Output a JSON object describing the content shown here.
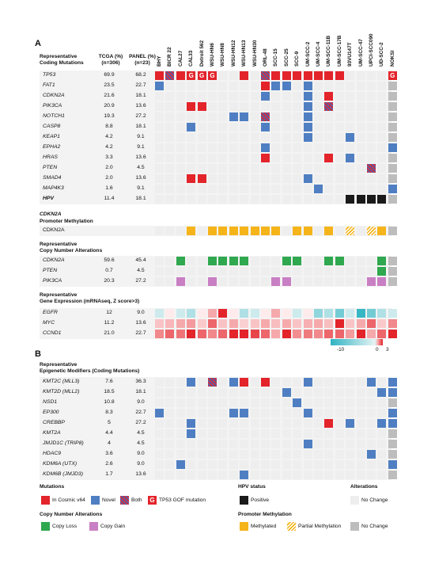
{
  "panel_a": {
    "letter": "A",
    "mutations_title": "Representative\nCoding Mutations",
    "tcga_header": "TCGA (%)\n(n=306)",
    "panel_header": "PANEL (%)\n(n=23)",
    "cell_lines": [
      "BHY",
      "BICR 22",
      "CAL27",
      "CAL33",
      "Detroit 562",
      "WSU-HN6",
      "WSU-HN8",
      "WSU-HN12",
      "WSU-HN13",
      "WSU-HN30",
      "ORL-48",
      "SCC-15",
      "SCC-25",
      "SCC-9",
      "UM-SCC-2",
      "UM-SCC-4",
      "UM-SCC-11B",
      "UM-SCC-17B",
      "93VU147T",
      "UM-SCC-47",
      "UPCI-SCC090",
      "UD-SCC-2",
      "NOKSI"
    ],
    "mutation_rows": [
      {
        "gene": "TP53",
        "tcga": "69.9",
        "panel": "68.2",
        "cells": "RHRGGGXXRXHRRRRRRRXXXXG"
      },
      {
        "gene": "FAT1",
        "tcga": "23.5",
        "panel": "22.7",
        "cells": "BXXXXXXXXXRBBXBXXXXXXXL"
      },
      {
        "gene": "CDKN2A",
        "tcga": "21.6",
        "panel": "18.1",
        "cells": "XXXXXXXXXXBXXXBXRXXXXXL"
      },
      {
        "gene": "PIK3CA",
        "tcga": "20.9",
        "panel": "13.6",
        "cells": "XXXRRXXXXXXXXXBXHXXXXXL"
      },
      {
        "gene": "NOTCH1",
        "tcga": "19.3",
        "panel": "27.2",
        "cells": "XXXXXXXBBXHXXXBXXXXXXXL"
      },
      {
        "gene": "CASP8",
        "tcga": "8.8",
        "panel": "18.1",
        "cells": "XXXBXXXXXXBXXXBXXXXXXXL"
      },
      {
        "gene": "KEAP1",
        "tcga": "4.2",
        "panel": "9.1",
        "cells": "XXXXXXXXXXXXXXBXXXBXXXL"
      },
      {
        "gene": "EPHA2",
        "tcga": "4.2",
        "panel": "9.1",
        "cells": "XXXXXXXXXXBXXXXXXXXXXXB"
      },
      {
        "gene": "HRAS",
        "tcga": "3.3",
        "panel": "13.6",
        "cells": "XXXXXXXXXXRXXXXXRXBXXXL"
      },
      {
        "gene": "PTEN",
        "tcga": "2.0",
        "panel": "4.5",
        "cells": "XXXXXXXXXXXXXXXXXXXXHXL"
      },
      {
        "gene": "SMAD4",
        "tcga": "2.0",
        "panel": "13.6",
        "cells": "XXXRRXXXXXXXXXBXXXXXXXL"
      },
      {
        "gene": "MAP4K3",
        "tcga": "1.6",
        "panel": "9.1",
        "cells": "XXXXXXXXXXXXXXXBXXXXXXB"
      },
      {
        "gene": "HPV",
        "tcga": "11.4",
        "panel": "18.1",
        "bold": true,
        "cells": "XXXXXXXXXXXXXXXXXXKKKKL"
      }
    ],
    "methylation_title_gene": "CDKN2A",
    "methylation_title": "Promoter Methylation",
    "methylation_row": {
      "gene": "CDKN2A",
      "cells": "XXXYXYYYYYYYXYYXYXPXPYL"
    },
    "cna_title": "Representative\nCopy Number Alterations",
    "cna_rows": [
      {
        "gene": "CDKN2A",
        "tcga": "59.6",
        "panel": "45.4",
        "cells": "XXCXXCCCCXXXCCXXCCXXXCL"
      },
      {
        "gene": "PTEN",
        "tcga": "0.7",
        "panel": "4.5",
        "cells": "XXXXXXXXXXXXXXXXXXXXXCL"
      },
      {
        "gene": "PIK3CA",
        "tcga": "20.3",
        "panel": "27.2",
        "cells": "XXMXXMXXXXXMMXXXXXXXMML"
      }
    ],
    "expr_title": "Representative\nGene Expression (mRNAseq, Z score>3)",
    "expr_rows": [
      {
        "gene": "EGFR",
        "tcga": "12",
        "panel": "9.0",
        "z": [
          -1,
          0,
          -1,
          -2,
          0,
          1,
          3,
          0,
          -2,
          -1,
          0,
          1,
          0,
          -1,
          0,
          -3,
          -2,
          -4,
          -1,
          -6,
          -4,
          -2,
          -1
        ]
      },
      {
        "gene": "MYC",
        "tcga": "11.2",
        "panel": "13.6",
        "z": [
          0.6,
          0.8,
          1,
          1.2,
          0.5,
          2,
          0.6,
          1,
          0.4,
          0.6,
          1,
          0.7,
          1,
          0.6,
          0.9,
          1,
          0.7,
          3,
          0.6,
          1,
          2,
          0.5,
          1.5
        ]
      },
      {
        "gene": "CCND1",
        "tcga": "21.0",
        "panel": "22.7",
        "z": [
          1.5,
          2,
          1.8,
          3,
          2,
          1.5,
          2,
          3,
          3,
          2.5,
          2,
          1,
          3,
          1.4,
          1.7,
          1.5,
          2,
          2,
          1.2,
          3,
          1,
          2,
          3
        ]
      }
    ],
    "scale_labels": [
      "-10",
      "0",
      "3"
    ]
  },
  "panel_b": {
    "letter": "B",
    "title": "Representative\nEpigenetic Modifiers (Coding Mutations)",
    "rows": [
      {
        "gene": "KMT2C (MLL3)",
        "tcga": "7.6",
        "panel": "36.3",
        "cells": "XXXBXHXBRXRXXXBXXXXXBXB"
      },
      {
        "gene": "KMT2D (MLL2)",
        "tcga": "18.5",
        "panel": "18.1",
        "cells": "XXXXXXXXXXXXBXXXXXXXXBB"
      },
      {
        "gene": "NSD1",
        "tcga": "10.8",
        "panel": "9.0",
        "cells": "XXXXXXXXXXXXXBXXXXXXXXL"
      },
      {
        "gene": "EP300",
        "tcga": "8.3",
        "panel": "22.7",
        "cells": "BXXXXXXBBXXXXXBXXXXXXXB"
      },
      {
        "gene": "CREBBP",
        "tcga": "5",
        "panel": "27.2",
        "cells": "XXXBXXXXXXXXXXXXRXBXXBB"
      },
      {
        "gene": "KMT2A",
        "tcga": "4.4",
        "panel": "4.5",
        "cells": "XXXBXXXXXXXXXXXXXXXXXXL"
      },
      {
        "gene": "JMJD1C (TRIP8)",
        "tcga": "4",
        "panel": "4.5",
        "cells": "XXXXXXXXXXXXXXBXXXXXXXL"
      },
      {
        "gene": "HDAC9",
        "tcga": "3.6",
        "panel": "9.0",
        "cells": "XXXXXXXXXXXXXXXXXXXXBXL"
      },
      {
        "gene": "KDM6A (UTX)",
        "tcga": "2.6",
        "panel": "9.0",
        "cells": "XXBXXXXXXXXXXXXXXXXXXXB"
      },
      {
        "gene": "KDM6B (JMJD3)",
        "tcga": "1.7",
        "panel": "13.6",
        "cells": "XXXXXXXXBXXXXXXXXXXXXXL"
      }
    ]
  },
  "legend": {
    "mutations_title": "Mutations",
    "mut_cosmic": "In Cosmic v64",
    "mut_novel": "Novel",
    "mut_both": "Both",
    "mut_gof": "TP53 GOF mutation",
    "gof_glyph": "G",
    "hpv_title": "HPV status",
    "hpv_positive": "Positive",
    "alterations_title": "Alterations",
    "alterations_none": "No Change",
    "cna_title": "Copy Number Alterations",
    "cna_loss": "Copy Loss",
    "cna_gain": "Copy Gain",
    "meth_title": "Promoter Methylation",
    "meth_methylated": "Methylated",
    "meth_partial": "Partial Methylation",
    "meth_none": "No Change"
  },
  "colors": {
    "red": "#e3242b",
    "blue": "#4f7fc2",
    "black": "#1a1a1a",
    "green": "#2fa84f",
    "pink": "#c97fc4",
    "yellow": "#f5b41a",
    "gray": "#bdbdbd",
    "empty": "#eeeeee"
  }
}
